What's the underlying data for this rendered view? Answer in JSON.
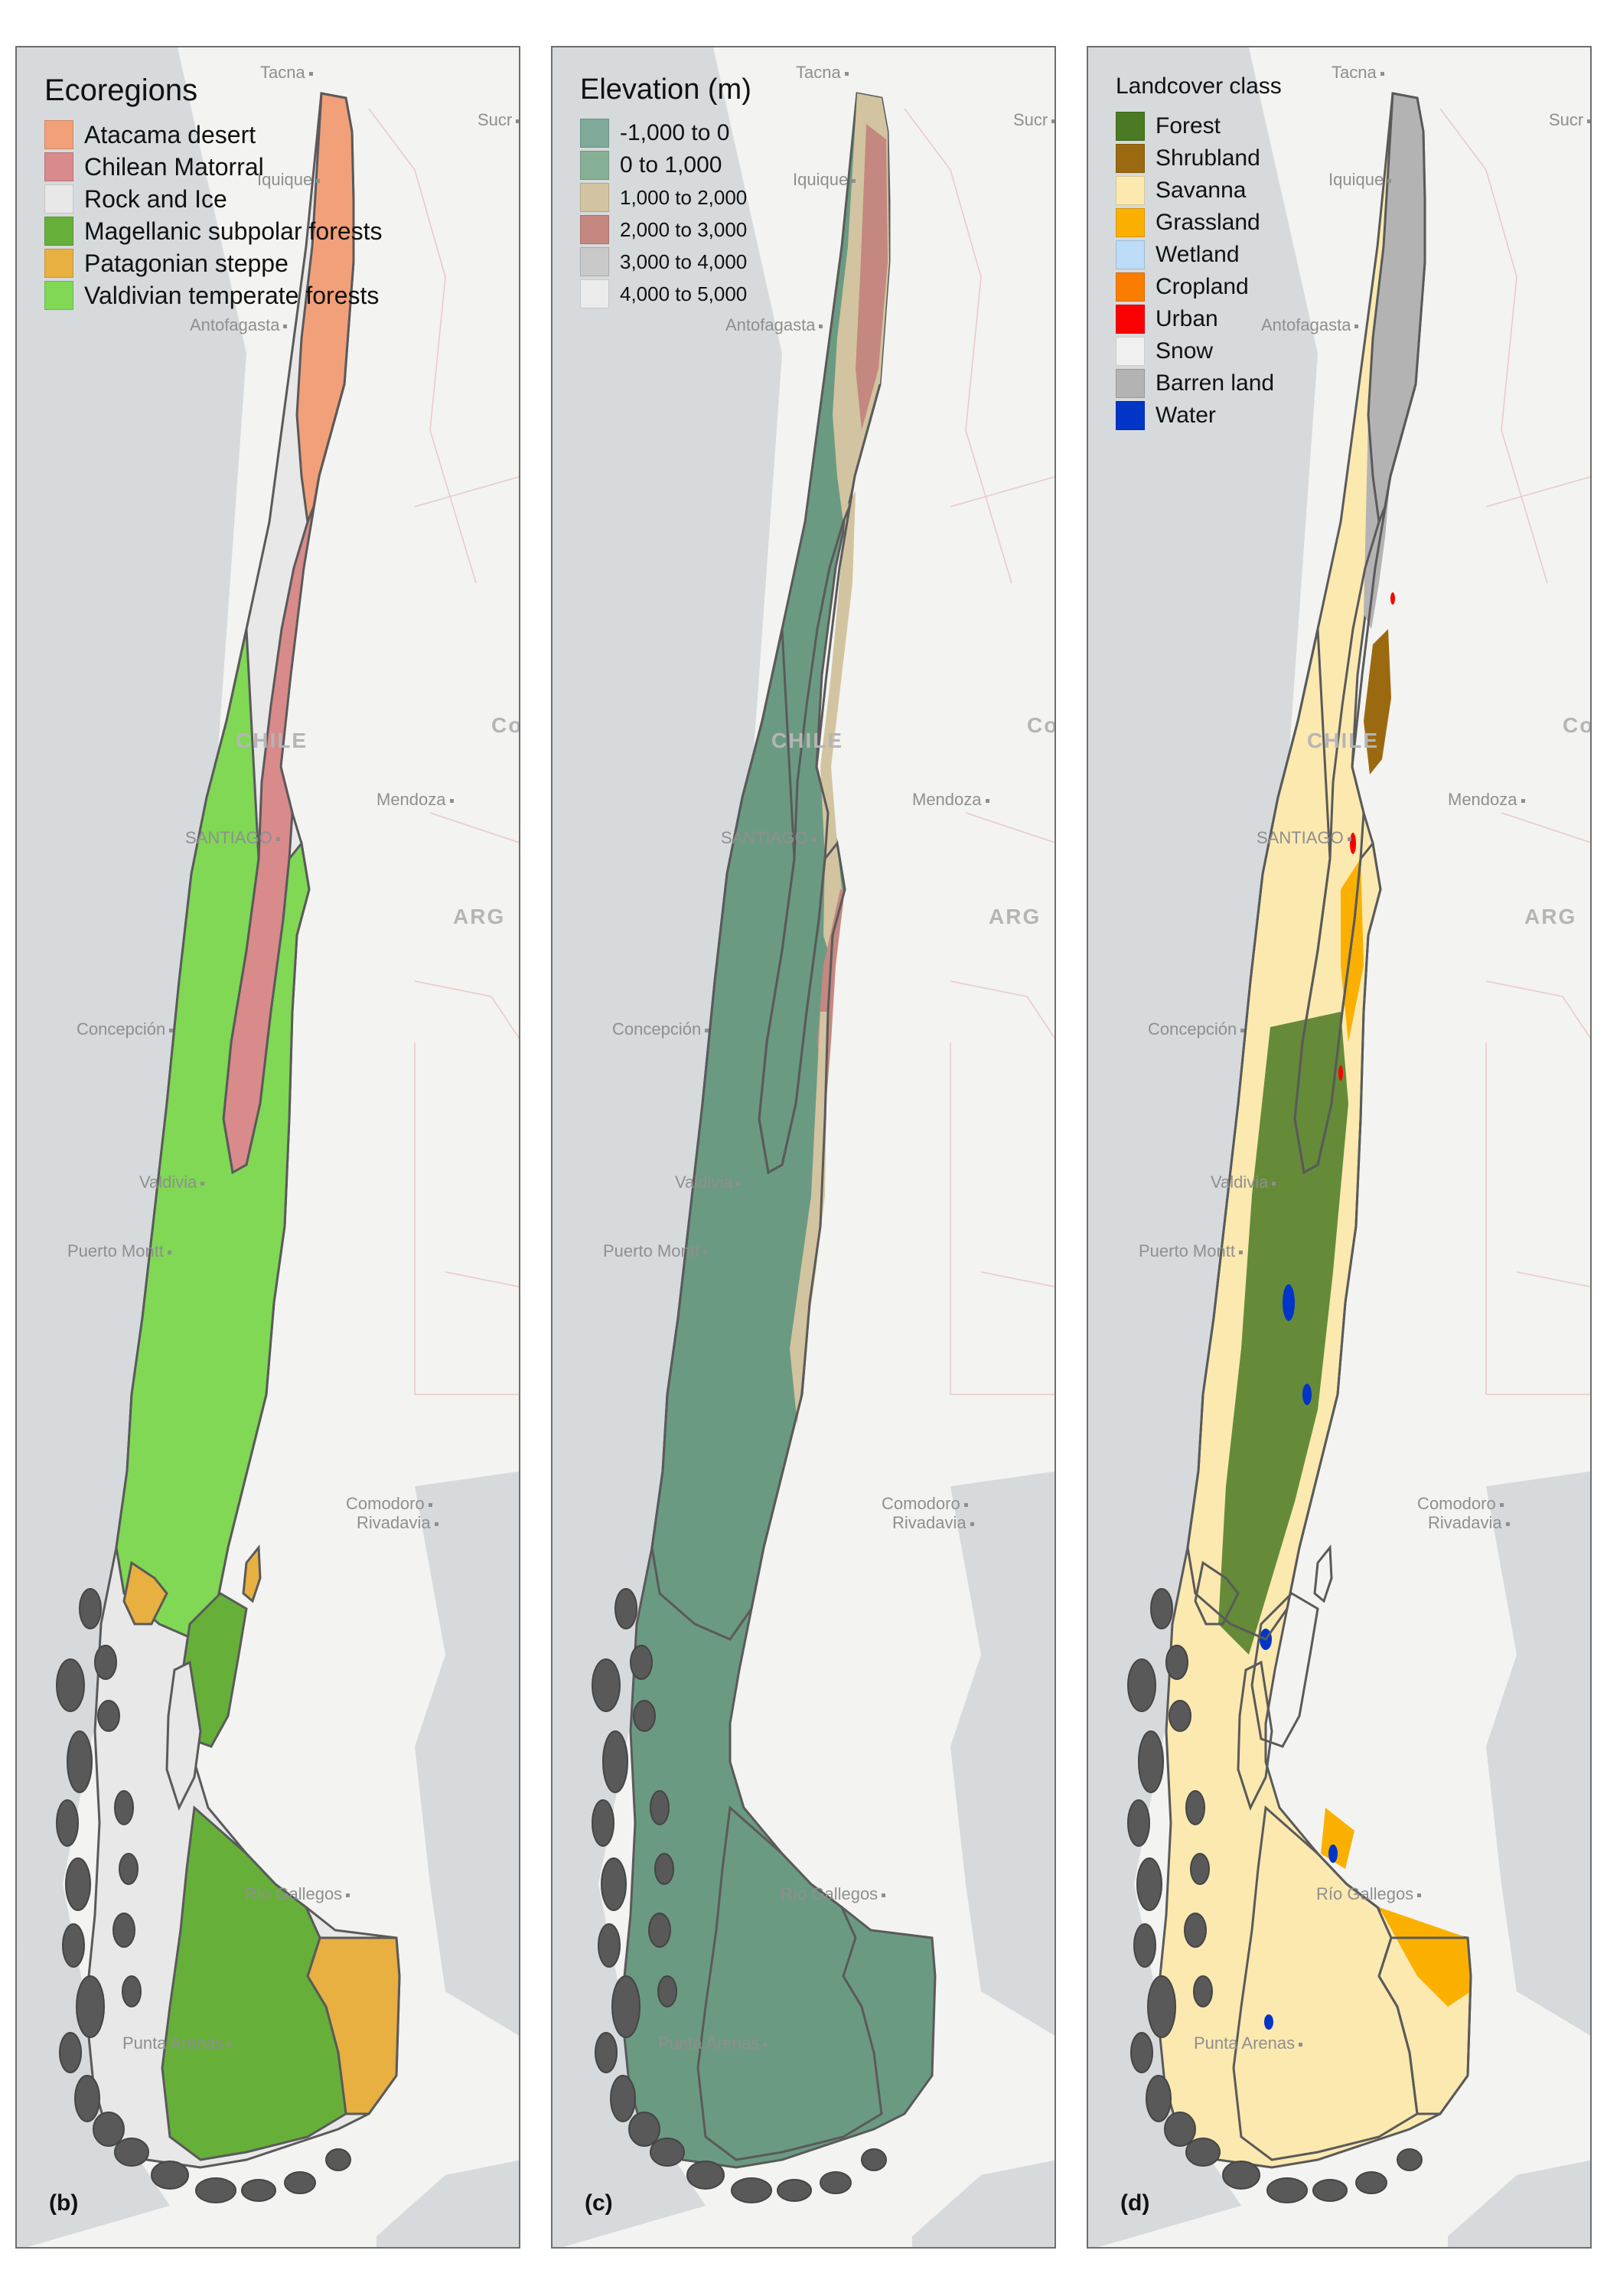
{
  "panels": [
    {
      "letter": "(b)",
      "legend": {
        "title": "Ecoregions",
        "items": [
          {
            "label": "Atacama desert",
            "color": "#f2a07a"
          },
          {
            "label": "Chilean Matorral",
            "color": "#d98a8a"
          },
          {
            "label": "Rock and Ice",
            "color": "#e8e8e8"
          },
          {
            "label": "Magellanic subpolar forests",
            "color": "#66b03a"
          },
          {
            "label": "Patagonian steppe",
            "color": "#e8b040"
          },
          {
            "label": "Valdivian temperate forests",
            "color": "#80d855"
          }
        ]
      }
    },
    {
      "letter": "(c)",
      "legend": {
        "title": "Elevation (m)",
        "items": [
          {
            "label": "-1,000 to 0",
            "color": "#7faa99"
          },
          {
            "label": "0 to 1,000",
            "color": "#86b095"
          },
          {
            "label": "1,000 to 2,000",
            "color": "#d2c4a0"
          },
          {
            "label": "2,000 to 3,000",
            "color": "#c48880"
          },
          {
            "label": "3,000 to 4,000",
            "color": "#c9c9c9"
          },
          {
            "label": "4,000 to 5,000",
            "color": "#ebebeb"
          }
        ]
      }
    },
    {
      "letter": "(d)",
      "legend": {
        "title": "Landcover class",
        "items": [
          {
            "label": "Forest",
            "color": "#4a7a23"
          },
          {
            "label": "Shrubland",
            "color": "#9b6a10"
          },
          {
            "label": "Savanna",
            "color": "#fbe9b0"
          },
          {
            "label": "Grassland",
            "color": "#fbb000"
          },
          {
            "label": "Wetland",
            "color": "#bcdcf8"
          },
          {
            "label": "Cropland",
            "color": "#fb7d00"
          },
          {
            "label": "Urban",
            "color": "#fb0000"
          },
          {
            "label": "Snow",
            "color": "#f0f0f0"
          },
          {
            "label": "Barren land",
            "color": "#b3b3b3"
          },
          {
            "label": "Water",
            "color": "#0035c8"
          }
        ]
      }
    }
  ],
  "basemap": {
    "cities": [
      "Tacna",
      "Sucr",
      "Iquique",
      "Antofagasta",
      "Mendoza",
      "SANTIAGO",
      "Concepción",
      "Valdivia",
      "Puerto Montt",
      "Comodoro",
      "Rivadavia",
      "Río Gallegos",
      "Punta Arenas"
    ],
    "countries": [
      "CHILE",
      "ARG",
      "Co"
    ]
  }
}
